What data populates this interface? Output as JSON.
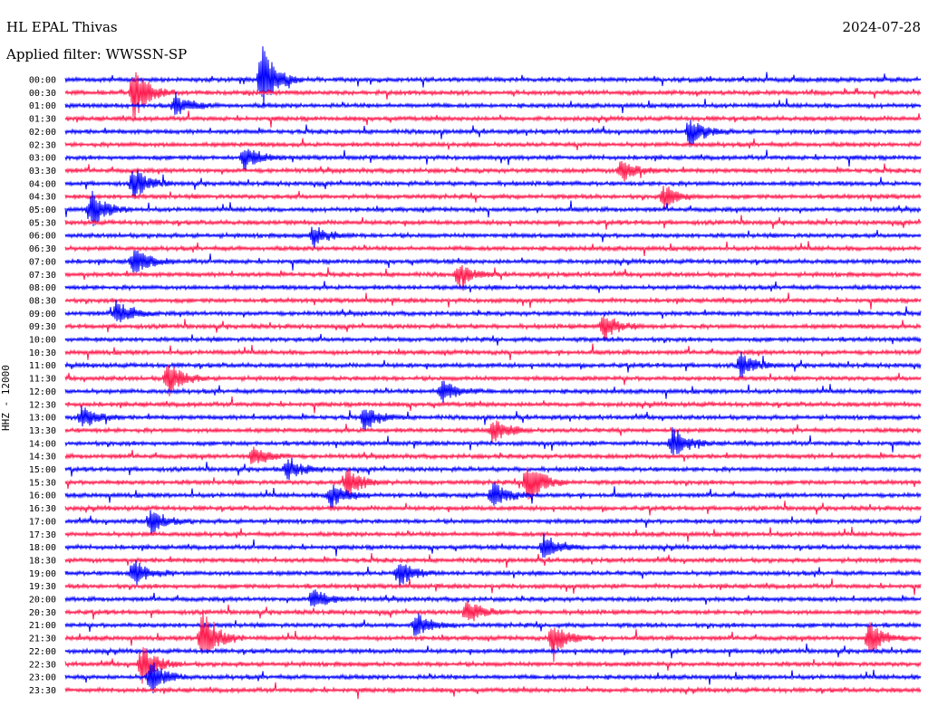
{
  "header": {
    "station": "HL EPAL Thivas",
    "filter": "Applied filter: WWSSN-SP",
    "date": "2024-07-28"
  },
  "chart_data": {
    "type": "line",
    "title": "HL EPAL Thivas",
    "subtitle": "Applied filter: WWSSN-SP",
    "ylabel": "HHZ - 12000",
    "xlabel": "",
    "row_labels": [
      "00:00",
      "00:30",
      "01:00",
      "01:30",
      "02:00",
      "02:30",
      "03:00",
      "03:30",
      "04:00",
      "04:30",
      "05:00",
      "05:30",
      "06:00",
      "06:30",
      "07:00",
      "07:30",
      "08:00",
      "08:30",
      "09:00",
      "09:30",
      "10:00",
      "10:30",
      "11:00",
      "11:30",
      "12:00",
      "12:30",
      "13:00",
      "13:30",
      "14:00",
      "14:30",
      "15:00",
      "15:30",
      "16:00",
      "16:30",
      "17:00",
      "17:30",
      "18:00",
      "18:30",
      "19:00",
      "19:30",
      "20:00",
      "20:30",
      "21:00",
      "21:30",
      "22:00",
      "22:30",
      "23:00",
      "23:30"
    ],
    "colors": {
      "even_rows": "#0000ff",
      "odd_rows": "#ff1a4d"
    },
    "events": [
      {
        "row": 0,
        "pos": 0.23,
        "amp": 2.8
      },
      {
        "row": 1,
        "pos": 0.08,
        "amp": 2.2
      },
      {
        "row": 2,
        "pos": 0.13,
        "amp": 0.9
      },
      {
        "row": 4,
        "pos": 0.73,
        "amp": 1.2
      },
      {
        "row": 6,
        "pos": 0.21,
        "amp": 1.0
      },
      {
        "row": 7,
        "pos": 0.65,
        "amp": 1.0
      },
      {
        "row": 8,
        "pos": 0.08,
        "amp": 1.3
      },
      {
        "row": 9,
        "pos": 0.7,
        "amp": 0.9
      },
      {
        "row": 10,
        "pos": 0.03,
        "amp": 1.5
      },
      {
        "row": 12,
        "pos": 0.29,
        "amp": 0.9
      },
      {
        "row": 14,
        "pos": 0.08,
        "amp": 1.2
      },
      {
        "row": 15,
        "pos": 0.46,
        "amp": 1.0
      },
      {
        "row": 18,
        "pos": 0.06,
        "amp": 1.1
      },
      {
        "row": 19,
        "pos": 0.63,
        "amp": 1.1
      },
      {
        "row": 22,
        "pos": 0.79,
        "amp": 1.0
      },
      {
        "row": 23,
        "pos": 0.12,
        "amp": 1.4
      },
      {
        "row": 24,
        "pos": 0.44,
        "amp": 1.0
      },
      {
        "row": 26,
        "pos": 0.02,
        "amp": 1.0
      },
      {
        "row": 26,
        "pos": 0.35,
        "amp": 1.0
      },
      {
        "row": 27,
        "pos": 0.5,
        "amp": 1.0
      },
      {
        "row": 28,
        "pos": 0.71,
        "amp": 1.3
      },
      {
        "row": 29,
        "pos": 0.22,
        "amp": 0.9
      },
      {
        "row": 30,
        "pos": 0.26,
        "amp": 0.9
      },
      {
        "row": 31,
        "pos": 0.33,
        "amp": 1.3
      },
      {
        "row": 31,
        "pos": 0.54,
        "amp": 2.0
      },
      {
        "row": 32,
        "pos": 0.31,
        "amp": 1.1
      },
      {
        "row": 32,
        "pos": 0.5,
        "amp": 1.1
      },
      {
        "row": 34,
        "pos": 0.1,
        "amp": 1.0
      },
      {
        "row": 36,
        "pos": 0.56,
        "amp": 1.1
      },
      {
        "row": 38,
        "pos": 0.08,
        "amp": 1.1
      },
      {
        "row": 38,
        "pos": 0.39,
        "amp": 1.1
      },
      {
        "row": 40,
        "pos": 0.29,
        "amp": 1.0
      },
      {
        "row": 41,
        "pos": 0.47,
        "amp": 1.0
      },
      {
        "row": 42,
        "pos": 0.41,
        "amp": 1.0
      },
      {
        "row": 43,
        "pos": 0.16,
        "amp": 2.3
      },
      {
        "row": 43,
        "pos": 0.57,
        "amp": 1.4
      },
      {
        "row": 43,
        "pos": 0.94,
        "amp": 1.4
      },
      {
        "row": 45,
        "pos": 0.09,
        "amp": 1.6
      },
      {
        "row": 46,
        "pos": 0.1,
        "amp": 1.4
      }
    ]
  }
}
